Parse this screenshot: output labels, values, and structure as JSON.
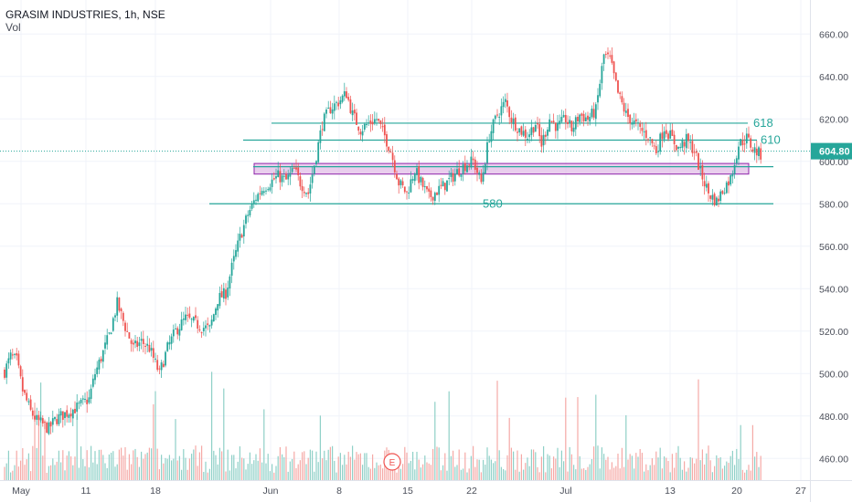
{
  "header": {
    "title": "GRASIM INDUSTRIES, 1h, NSE",
    "volume_label": "Vol"
  },
  "colors": {
    "up": "#26a69a",
    "down": "#ef5350",
    "up_volume": "#8fd0c7",
    "down_volume": "#f5a9a6",
    "grid": "#f0f3fa",
    "level_line": "#26a69a",
    "zone_fill": "#e1bee7",
    "zone_border": "#8e24aa",
    "price_label_bg": "#26a69a",
    "axis_text": "#4a4e59"
  },
  "chart_data": {
    "type": "candlestick",
    "title": "GRASIM INDUSTRIES, 1h, NSE",
    "ylabel": "",
    "xlabel": "",
    "ylim": [
      453,
      667
    ],
    "y_ticks": [
      460,
      480,
      500,
      520,
      540,
      560,
      580,
      600,
      620,
      640,
      660
    ],
    "y_tick_labels": [
      "460.00",
      "480.00",
      "500.00",
      "520.00",
      "540.00",
      "560.00",
      "580.00",
      "600.00",
      "620.00",
      "640.00",
      "660.00"
    ],
    "x_tick_labels": [
      "May",
      "11",
      "18",
      "Jun",
      "8",
      "15",
      "22",
      "Jul",
      "13",
      "20",
      "27"
    ],
    "last_price": 604.8,
    "last_price_label": "604.80",
    "price_path": [
      {
        "t": 0,
        "p": 501
      },
      {
        "t": 3,
        "p": 508
      },
      {
        "t": 6,
        "p": 506
      },
      {
        "t": 9,
        "p": 492
      },
      {
        "t": 13,
        "p": 482
      },
      {
        "t": 16,
        "p": 478
      },
      {
        "t": 19,
        "p": 476
      },
      {
        "t": 22,
        "p": 474
      },
      {
        "t": 25,
        "p": 478
      },
      {
        "t": 28,
        "p": 480
      },
      {
        "t": 32,
        "p": 482
      },
      {
        "t": 36,
        "p": 484
      },
      {
        "t": 39,
        "p": 486
      },
      {
        "t": 42,
        "p": 488
      },
      {
        "t": 45,
        "p": 500
      },
      {
        "t": 49,
        "p": 510
      },
      {
        "t": 52,
        "p": 518
      },
      {
        "t": 56,
        "p": 533
      },
      {
        "t": 60,
        "p": 522
      },
      {
        "t": 64,
        "p": 512
      },
      {
        "t": 68,
        "p": 515
      },
      {
        "t": 72,
        "p": 512
      },
      {
        "t": 77,
        "p": 500
      },
      {
        "t": 81,
        "p": 512
      },
      {
        "t": 85,
        "p": 520
      },
      {
        "t": 90,
        "p": 526
      },
      {
        "t": 94,
        "p": 524
      },
      {
        "t": 98,
        "p": 522
      },
      {
        "t": 102,
        "p": 521
      },
      {
        "t": 106,
        "p": 535
      },
      {
        "t": 110,
        "p": 538
      },
      {
        "t": 113,
        "p": 550
      },
      {
        "t": 117,
        "p": 564
      },
      {
        "t": 121,
        "p": 575
      },
      {
        "t": 125,
        "p": 583
      },
      {
        "t": 129,
        "p": 588
      },
      {
        "t": 132,
        "p": 590
      },
      {
        "t": 136,
        "p": 593
      },
      {
        "t": 140,
        "p": 591
      },
      {
        "t": 144,
        "p": 596
      },
      {
        "t": 147,
        "p": 590
      },
      {
        "t": 151,
        "p": 585
      },
      {
        "t": 155,
        "p": 603
      },
      {
        "t": 158,
        "p": 618
      },
      {
        "t": 162,
        "p": 625
      },
      {
        "t": 166,
        "p": 628
      },
      {
        "t": 170,
        "p": 632
      },
      {
        "t": 173,
        "p": 622
      },
      {
        "t": 177,
        "p": 615
      },
      {
        "t": 181,
        "p": 618
      },
      {
        "t": 185,
        "p": 620
      },
      {
        "t": 189,
        "p": 612
      },
      {
        "t": 192,
        "p": 605
      },
      {
        "t": 196,
        "p": 590
      },
      {
        "t": 200,
        "p": 585
      },
      {
        "t": 204,
        "p": 596
      },
      {
        "t": 207,
        "p": 590
      },
      {
        "t": 211,
        "p": 583
      },
      {
        "t": 215,
        "p": 586
      },
      {
        "t": 219,
        "p": 589
      },
      {
        "t": 222,
        "p": 592
      },
      {
        "t": 226,
        "p": 596
      },
      {
        "t": 230,
        "p": 599
      },
      {
        "t": 233,
        "p": 600
      },
      {
        "t": 237,
        "p": 590
      },
      {
        "t": 241,
        "p": 612
      },
      {
        "t": 245,
        "p": 622
      },
      {
        "t": 249,
        "p": 628
      },
      {
        "t": 252,
        "p": 620
      },
      {
        "t": 256,
        "p": 615
      },
      {
        "t": 260,
        "p": 612
      },
      {
        "t": 264,
        "p": 618
      },
      {
        "t": 267,
        "p": 608
      },
      {
        "t": 271,
        "p": 620
      },
      {
        "t": 275,
        "p": 616
      },
      {
        "t": 279,
        "p": 620
      },
      {
        "t": 282,
        "p": 615
      },
      {
        "t": 286,
        "p": 622
      },
      {
        "t": 290,
        "p": 620
      },
      {
        "t": 294,
        "p": 624
      },
      {
        "t": 298,
        "p": 650
      },
      {
        "t": 301,
        "p": 648
      },
      {
        "t": 305,
        "p": 632
      },
      {
        "t": 309,
        "p": 622
      },
      {
        "t": 313,
        "p": 618
      },
      {
        "t": 316,
        "p": 615
      },
      {
        "t": 320,
        "p": 612
      },
      {
        "t": 324,
        "p": 605
      },
      {
        "t": 328,
        "p": 616
      },
      {
        "t": 331,
        "p": 612
      },
      {
        "t": 335,
        "p": 606
      },
      {
        "t": 339,
        "p": 610
      },
      {
        "t": 343,
        "p": 605
      },
      {
        "t": 346,
        "p": 595
      },
      {
        "t": 350,
        "p": 585
      },
      {
        "t": 354,
        "p": 581
      },
      {
        "t": 358,
        "p": 588
      },
      {
        "t": 361,
        "p": 592
      },
      {
        "t": 365,
        "p": 608
      },
      {
        "t": 369,
        "p": 611
      },
      {
        "t": 372,
        "p": 606
      },
      {
        "t": 376,
        "p": 603
      }
    ],
    "levels": [
      {
        "label": "618",
        "value": 618
      },
      {
        "label": "610",
        "value": 610
      },
      {
        "label": "",
        "value": 597.5
      },
      {
        "label": "580",
        "value": 580
      }
    ],
    "zone": {
      "low": 594,
      "high": 599
    },
    "annotations": [
      {
        "label": "E",
        "kind": "earnings-marker"
      }
    ]
  }
}
